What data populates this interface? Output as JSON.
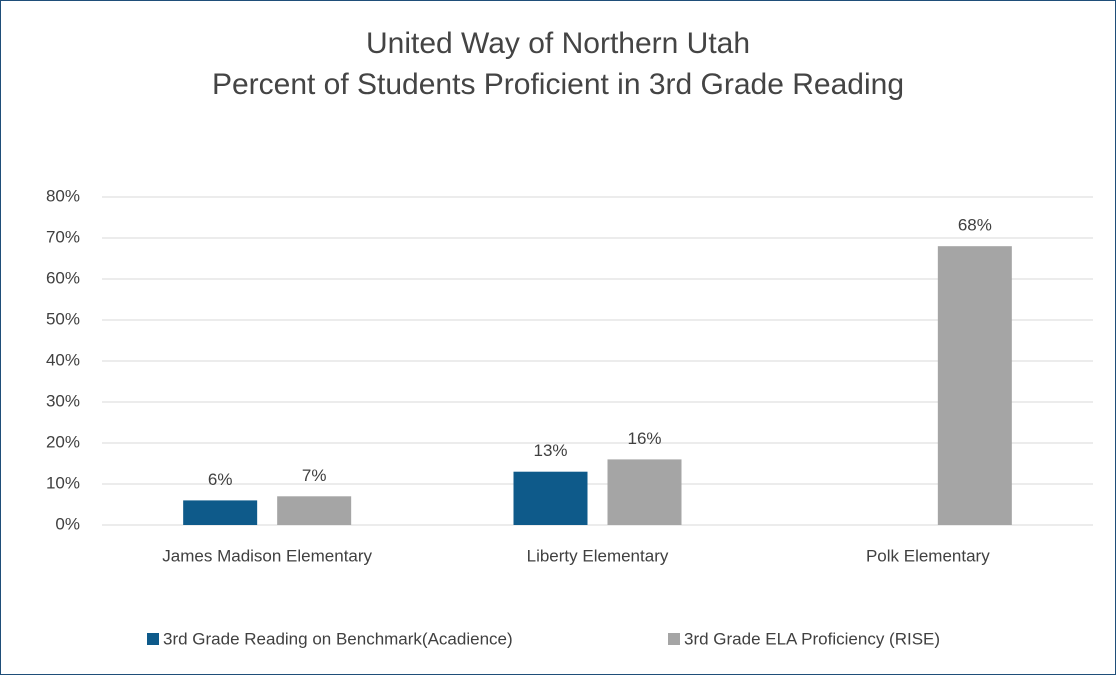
{
  "chart_data": {
    "type": "bar",
    "title": "United Way of Northern Utah",
    "subtitle": "Percent of Students Proficient in 3rd Grade Reading",
    "categories": [
      "James Madison Elementary",
      "Liberty Elementary",
      "Polk Elementary"
    ],
    "series": [
      {
        "name": "3rd Grade Reading on Benchmark(Acadience)",
        "color": "#0e5a8a",
        "values": [
          6,
          13,
          null
        ],
        "value_labels": [
          "6%",
          "13%",
          null
        ]
      },
      {
        "name": "3rd Grade ELA Proficiency (RISE)",
        "color": "#a5a5a5",
        "values": [
          7,
          16,
          68
        ],
        "value_labels": [
          "7%",
          "16%",
          "68%"
        ]
      }
    ],
    "ylim": [
      0,
      80
    ],
    "yticks": [
      {
        "value": 0,
        "label": "0%"
      },
      {
        "value": 10,
        "label": "10%"
      },
      {
        "value": 20,
        "label": "20%"
      },
      {
        "value": 30,
        "label": "30%"
      },
      {
        "value": 40,
        "label": "40%"
      },
      {
        "value": 50,
        "label": "50%"
      },
      {
        "value": 60,
        "label": "60%"
      },
      {
        "value": 70,
        "label": "70%"
      },
      {
        "value": 80,
        "label": "80%"
      }
    ],
    "grid": true,
    "legend": "bottom"
  }
}
